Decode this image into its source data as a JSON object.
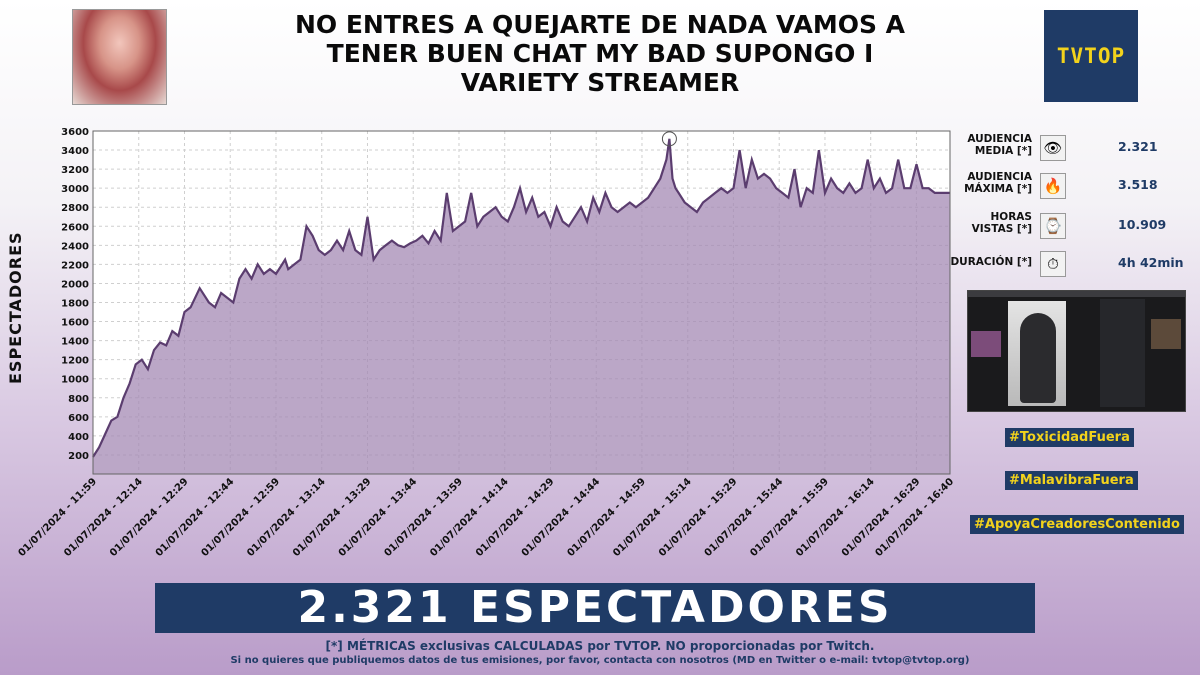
{
  "header": {
    "title_lines": [
      "NO ENTRES A QUEJARTE DE NADA VAMOS A",
      "TENER BUEN CHAT  MY BAD SUPONGO I",
      "VARIETY STREAMER"
    ],
    "logo_text": "TVTOP"
  },
  "metrics": [
    {
      "label_lines": [
        "AUDIENCIA",
        "MEDIA [*]"
      ],
      "icon": "eye-icon",
      "glyph": "👁",
      "value": "2.321"
    },
    {
      "label_lines": [
        "AUDIENCIA",
        "MÁXIMA [*]"
      ],
      "icon": "fire-icon",
      "glyph": "🔥",
      "value": "3.518"
    },
    {
      "label_lines": [
        "HORAS",
        "VISTAS [*]"
      ],
      "icon": "watch-icon",
      "glyph": "⌚",
      "value": "10.909"
    },
    {
      "label_lines": [
        "DURACIÓN [*]"
      ],
      "icon": "stopwatch-icon",
      "glyph": "⏱",
      "value": "4h 42min"
    }
  ],
  "hashtags": [
    "#ToxicidadFuera",
    "#MalavibraFuera",
    "#ApoyaCreadoresContenido"
  ],
  "banner": "2.321 ESPECTADORES",
  "footer": {
    "line1": "[*] MÉTRICAS exclusivas CALCULADAS por TVTOP. NO proporcionadas por Twitch.",
    "line2": "Si no quieres que publiquemos datos de tus emisiones, por favor, contacta con nosotros (MD en Twitter o e-mail: tvtop@tvtop.org)"
  },
  "colors": {
    "accent": "#1f3b66",
    "line": "#5b3d6f",
    "area": "#a48ab4",
    "hashtag_text": "#f2d21c"
  },
  "chart_data": {
    "type": "area",
    "ylabel": "ESPECTADORES",
    "ylim": [
      0,
      3600
    ],
    "yticks": [
      200,
      400,
      600,
      800,
      1000,
      1200,
      1400,
      1600,
      1800,
      2000,
      2200,
      2400,
      2600,
      2800,
      3000,
      3200,
      3400,
      3600
    ],
    "xlim": [
      0,
      281
    ],
    "x_tick_minutes": [
      0,
      15,
      30,
      45,
      60,
      75,
      90,
      105,
      120,
      135,
      150,
      165,
      180,
      195,
      210,
      225,
      240,
      255,
      270,
      281
    ],
    "x_tick_labels": [
      "01/07/2024 - 11:59",
      "01/07/2024 - 12:14",
      "01/07/2024 - 12:29",
      "01/07/2024 - 12:44",
      "01/07/2024 - 12:59",
      "01/07/2024 - 13:14",
      "01/07/2024 - 13:29",
      "01/07/2024 - 13:44",
      "01/07/2024 - 13:59",
      "01/07/2024 - 14:14",
      "01/07/2024 - 14:29",
      "01/07/2024 - 14:44",
      "01/07/2024 - 14:59",
      "01/07/2024 - 15:14",
      "01/07/2024 - 15:29",
      "01/07/2024 - 15:44",
      "01/07/2024 - 15:59",
      "01/07/2024 - 16:14",
      "01/07/2024 - 16:29",
      "01/07/2024 - 16:40"
    ],
    "grid": true,
    "peak": {
      "minute": 189,
      "value": 3518
    },
    "series": [
      {
        "minutes": [
          0,
          2,
          4,
          6,
          8,
          10,
          12,
          14,
          16,
          18,
          20,
          22,
          24,
          26,
          28,
          30,
          32,
          35,
          38,
          40,
          42,
          44,
          46,
          48,
          50,
          52,
          54,
          56,
          58,
          60,
          62,
          63,
          64,
          66,
          68,
          70,
          72,
          74,
          76,
          78,
          80,
          82,
          84,
          86,
          88,
          90,
          92,
          94,
          96,
          98,
          100,
          102,
          104,
          106,
          108,
          110,
          112,
          114,
          116,
          118,
          120,
          122,
          124,
          126,
          128,
          130,
          132,
          134,
          136,
          138,
          140,
          142,
          144,
          146,
          148,
          150,
          152,
          154,
          156,
          158,
          160,
          162,
          164,
          166,
          168,
          170,
          172,
          174,
          176,
          178,
          180,
          182,
          184,
          186,
          188,
          189,
          190,
          191,
          192,
          194,
          196,
          198,
          200,
          202,
          204,
          206,
          208,
          210,
          212,
          214,
          216,
          218,
          220,
          222,
          224,
          226,
          228,
          230,
          232,
          234,
          236,
          238,
          240,
          242,
          244,
          246,
          248,
          250,
          252,
          254,
          256,
          258,
          260,
          262,
          264,
          266,
          268,
          270,
          272,
          274,
          276,
          278,
          280,
          281
        ],
        "values": [
          180,
          280,
          420,
          560,
          600,
          800,
          950,
          1150,
          1200,
          1100,
          1300,
          1380,
          1350,
          1500,
          1450,
          1700,
          1750,
          1950,
          1800,
          1750,
          1900,
          1850,
          1800,
          2050,
          2150,
          2050,
          2200,
          2100,
          2150,
          2100,
          2200,
          2250,
          2150,
          2200,
          2250,
          2600,
          2500,
          2350,
          2300,
          2350,
          2450,
          2350,
          2550,
          2350,
          2300,
          2700,
          2250,
          2350,
          2400,
          2450,
          2400,
          2380,
          2420,
          2450,
          2500,
          2420,
          2550,
          2450,
          2950,
          2550,
          2600,
          2650,
          2950,
          2600,
          2700,
          2750,
          2800,
          2700,
          2650,
          2800,
          3000,
          2750,
          2900,
          2700,
          2750,
          2600,
          2800,
          2650,
          2600,
          2700,
          2800,
          2650,
          2900,
          2750,
          2950,
          2800,
          2750,
          2800,
          2850,
          2800,
          2850,
          2900,
          3000,
          3100,
          3300,
          3518,
          3100,
          3000,
          2950,
          2850,
          2800,
          2750,
          2850,
          2900,
          2950,
          3000,
          2950,
          3000,
          3400,
          3000,
          3300,
          3100,
          3150,
          3100,
          3000,
          2950,
          2900,
          3200,
          2800,
          3000,
          2950,
          3400,
          2950,
          3100,
          3000,
          2950,
          3050,
          2950,
          3000,
          3300,
          3000,
          3100,
          2950,
          3000,
          3300,
          3000,
          3000,
          3250,
          3000,
          3000,
          2950,
          2950,
          2950,
          2950
        ]
      }
    ]
  }
}
